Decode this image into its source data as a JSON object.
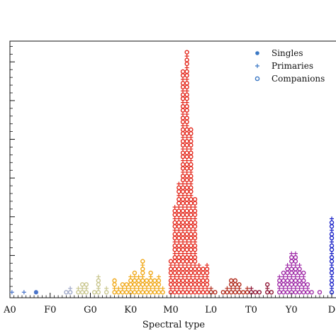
{
  "chart_data": {
    "type": "scatter",
    "xlabel": "Spectral type",
    "ylabel": "",
    "x_tick_labels": [
      "A0",
      "F0",
      "G0",
      "K0",
      "M0",
      "L0",
      "T0",
      "Y0",
      "D"
    ],
    "x_tick_positions": [
      0,
      10,
      20,
      30,
      40,
      50,
      60,
      70,
      80
    ],
    "xlim": [
      0,
      80
    ],
    "ylim": [
      0,
      65
    ],
    "y_tick_positions": [
      10,
      20,
      30,
      40,
      50,
      60
    ],
    "y_tick_labels_visible": false,
    "grid": false,
    "legend_placement": "top-right",
    "legend": [
      {
        "name": "Singles",
        "marker": "dot"
      },
      {
        "name": "Primaries",
        "marker": "plus"
      },
      {
        "name": "Companions",
        "marker": "ring"
      }
    ],
    "legend_color": "#3b78c4",
    "colors": {
      "A": "#4a74c9",
      "F": "#9fa8c8",
      "G": "#c9c68e",
      "K": "#f0a818",
      "M": "#e4281c",
      "L": "#b02818",
      "T": "#8c1030",
      "Y": "#a02ca8",
      "D": "#1a22c8"
    },
    "histogram": [
      {
        "x": 0.5,
        "count": 1,
        "class": "A"
      },
      {
        "x": 3.5,
        "count": 1,
        "class": "A"
      },
      {
        "x": 6.5,
        "count": 1,
        "class": "A"
      },
      {
        "x": 14,
        "count": 1,
        "class": "F"
      },
      {
        "x": 15,
        "count": 2,
        "class": "F"
      },
      {
        "x": 17,
        "count": 2,
        "class": "G"
      },
      {
        "x": 18,
        "count": 3,
        "class": "G"
      },
      {
        "x": 19,
        "count": 3,
        "class": "G"
      },
      {
        "x": 21,
        "count": 1,
        "class": "G"
      },
      {
        "x": 22,
        "count": 5,
        "class": "G"
      },
      {
        "x": 24,
        "count": 2,
        "class": "G"
      },
      {
        "x": 26,
        "count": 4,
        "class": "K"
      },
      {
        "x": 27,
        "count": 2,
        "class": "K"
      },
      {
        "x": 28,
        "count": 3,
        "class": "K"
      },
      {
        "x": 29,
        "count": 3,
        "class": "K"
      },
      {
        "x": 30,
        "count": 5,
        "class": "K"
      },
      {
        "x": 31,
        "count": 6,
        "class": "K"
      },
      {
        "x": 32,
        "count": 5,
        "class": "K"
      },
      {
        "x": 33,
        "count": 9,
        "class": "K"
      },
      {
        "x": 34,
        "count": 4,
        "class": "K"
      },
      {
        "x": 35,
        "count": 6,
        "class": "K"
      },
      {
        "x": 36,
        "count": 4,
        "class": "K"
      },
      {
        "x": 37,
        "count": 5,
        "class": "K"
      },
      {
        "x": 38,
        "count": 2,
        "class": "K"
      },
      {
        "x": 40,
        "count": 9,
        "class": "M"
      },
      {
        "x": 41,
        "count": 23,
        "class": "M"
      },
      {
        "x": 42,
        "count": 29,
        "class": "M"
      },
      {
        "x": 43,
        "count": 58,
        "class": "M"
      },
      {
        "x": 44,
        "count": 63,
        "class": "M"
      },
      {
        "x": 45,
        "count": 43,
        "class": "M"
      },
      {
        "x": 46,
        "count": 25,
        "class": "M"
      },
      {
        "x": 47,
        "count": 8,
        "class": "M"
      },
      {
        "x": 48,
        "count": 7,
        "class": "M"
      },
      {
        "x": 49,
        "count": 8,
        "class": "M"
      },
      {
        "x": 50,
        "count": 2,
        "class": "L"
      },
      {
        "x": 51,
        "count": 1,
        "class": "L"
      },
      {
        "x": 53,
        "count": 1,
        "class": "L"
      },
      {
        "x": 54,
        "count": 2,
        "class": "L"
      },
      {
        "x": 55,
        "count": 4,
        "class": "L"
      },
      {
        "x": 56,
        "count": 4,
        "class": "L"
      },
      {
        "x": 57,
        "count": 3,
        "class": "L"
      },
      {
        "x": 58,
        "count": 1,
        "class": "L"
      },
      {
        "x": 59,
        "count": 2,
        "class": "L"
      },
      {
        "x": 60,
        "count": 2,
        "class": "T"
      },
      {
        "x": 61,
        "count": 1,
        "class": "T"
      },
      {
        "x": 62,
        "count": 1,
        "class": "T"
      },
      {
        "x": 64,
        "count": 3,
        "class": "T"
      },
      {
        "x": 65,
        "count": 1,
        "class": "T"
      },
      {
        "x": 67,
        "count": 5,
        "class": "Y"
      },
      {
        "x": 68,
        "count": 6,
        "class": "Y"
      },
      {
        "x": 69,
        "count": 8,
        "class": "Y"
      },
      {
        "x": 70,
        "count": 11,
        "class": "Y"
      },
      {
        "x": 71,
        "count": 11,
        "class": "Y"
      },
      {
        "x": 72,
        "count": 8,
        "class": "Y"
      },
      {
        "x": 73,
        "count": 6,
        "class": "Y"
      },
      {
        "x": 74,
        "count": 3,
        "class": "Y"
      },
      {
        "x": 75,
        "count": 1,
        "class": "Y"
      },
      {
        "x": 77,
        "count": 1,
        "class": "Y"
      },
      {
        "x": 80,
        "count": 20,
        "class": "D"
      }
    ]
  }
}
